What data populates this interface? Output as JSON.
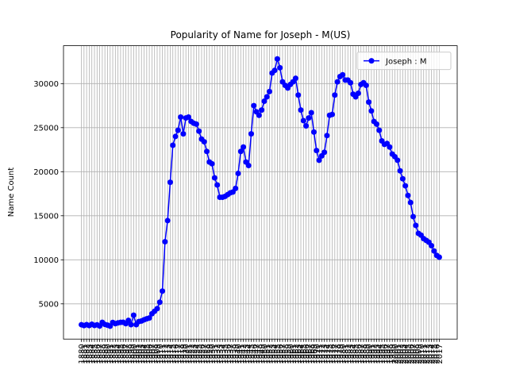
{
  "chart_data": {
    "type": "line",
    "title": "Popularity of Name for Joseph - M(US)",
    "y_label": "Name Count",
    "categories": [
      "1880",
      "1881",
      "1882",
      "1883",
      "1884",
      "1885",
      "1886",
      "1887",
      "1888",
      "1889",
      "1890",
      "1891",
      "1892",
      "1893",
      "1894",
      "1895",
      "1896",
      "1897",
      "1898",
      "1899",
      "1900",
      "1901",
      "1902",
      "1903",
      "1904",
      "1905",
      "1906",
      "1907",
      "1908",
      "1909",
      "1910",
      "1911",
      "1912",
      "1913",
      "1914",
      "1915",
      "1916",
      "1917",
      "1918",
      "1919",
      "1920",
      "1921",
      "1922",
      "1923",
      "1924",
      "1925",
      "1926",
      "1927",
      "1928",
      "1929",
      "1930",
      "1931",
      "1932",
      "1933",
      "1934",
      "1935",
      "1936",
      "1937",
      "1938",
      "1939",
      "1940",
      "1941",
      "1942",
      "1943",
      "1944",
      "1945",
      "1946",
      "1947",
      "1948",
      "1949",
      "1950",
      "1951",
      "1952",
      "1953",
      "1954",
      "1955",
      "1956",
      "1957",
      "1958",
      "1959",
      "1960",
      "1961",
      "1962",
      "1963",
      "1964",
      "1965",
      "1966",
      "1967",
      "1968",
      "1969",
      "1970",
      "1971",
      "1972",
      "1973",
      "1974",
      "1975",
      "1976",
      "1977",
      "1978",
      "1979",
      "1980",
      "1981",
      "1982",
      "1983",
      "1984",
      "1985",
      "1986",
      "1987",
      "1988",
      "1989",
      "1990",
      "1991",
      "1992",
      "1993",
      "1994",
      "1995",
      "1996",
      "1997",
      "1998",
      "1999",
      "2000",
      "2001",
      "2002",
      "2003",
      "2004",
      "2005",
      "2006",
      "2007",
      "2008",
      "2009",
      "2010",
      "2011",
      "2012",
      "2013",
      "2014",
      "2015",
      "2016",
      "2017"
    ],
    "series": [
      {
        "name": "Joseph : M",
        "color": "#0000ff",
        "values": [
          2632,
          2534,
          2638,
          2534,
          2690,
          2548,
          2622,
          2486,
          2903,
          2667,
          2586,
          2468,
          2890,
          2753,
          2838,
          2895,
          2908,
          2754,
          3119,
          2642,
          3715,
          2640,
          2986,
          3052,
          3193,
          3303,
          3395,
          3875,
          4155,
          4452,
          5182,
          6450,
          12050,
          14450,
          18800,
          23000,
          24000,
          24700,
          26200,
          24300,
          26100,
          26200,
          25700,
          25500,
          25400,
          24600,
          23700,
          23400,
          22300,
          21100,
          20900,
          19300,
          18500,
          17100,
          17100,
          17200,
          17400,
          17600,
          17700,
          18100,
          19800,
          22300,
          22800,
          21100,
          20700,
          24300,
          27500,
          26800,
          26400,
          27000,
          28000,
          28500,
          29100,
          31200,
          31500,
          32800,
          31800,
          30200,
          29800,
          29500,
          29900,
          30200,
          30600,
          28700,
          27000,
          25800,
          25200,
          26100,
          26700,
          24500,
          22400,
          21300,
          21800,
          22200,
          24100,
          26400,
          26500,
          28700,
          30200,
          30800,
          31000,
          30400,
          30400,
          30100,
          28800,
          28500,
          28900,
          29900,
          30100,
          29800,
          27900,
          26900,
          25700,
          25400,
          24700,
          23500,
          23100,
          23200,
          22800,
          22000,
          21700,
          21300,
          20100,
          19200,
          18400,
          17300,
          16500,
          14900,
          13900,
          13000,
          12800,
          12400,
          12200,
          12000,
          11600,
          11000,
          10500,
          10300
        ]
      }
    ],
    "ylim": [
      1000,
      34300
    ],
    "yticks": [
      5000,
      10000,
      15000,
      20000,
      25000,
      30000
    ],
    "grid": true,
    "legend": "upper right"
  }
}
